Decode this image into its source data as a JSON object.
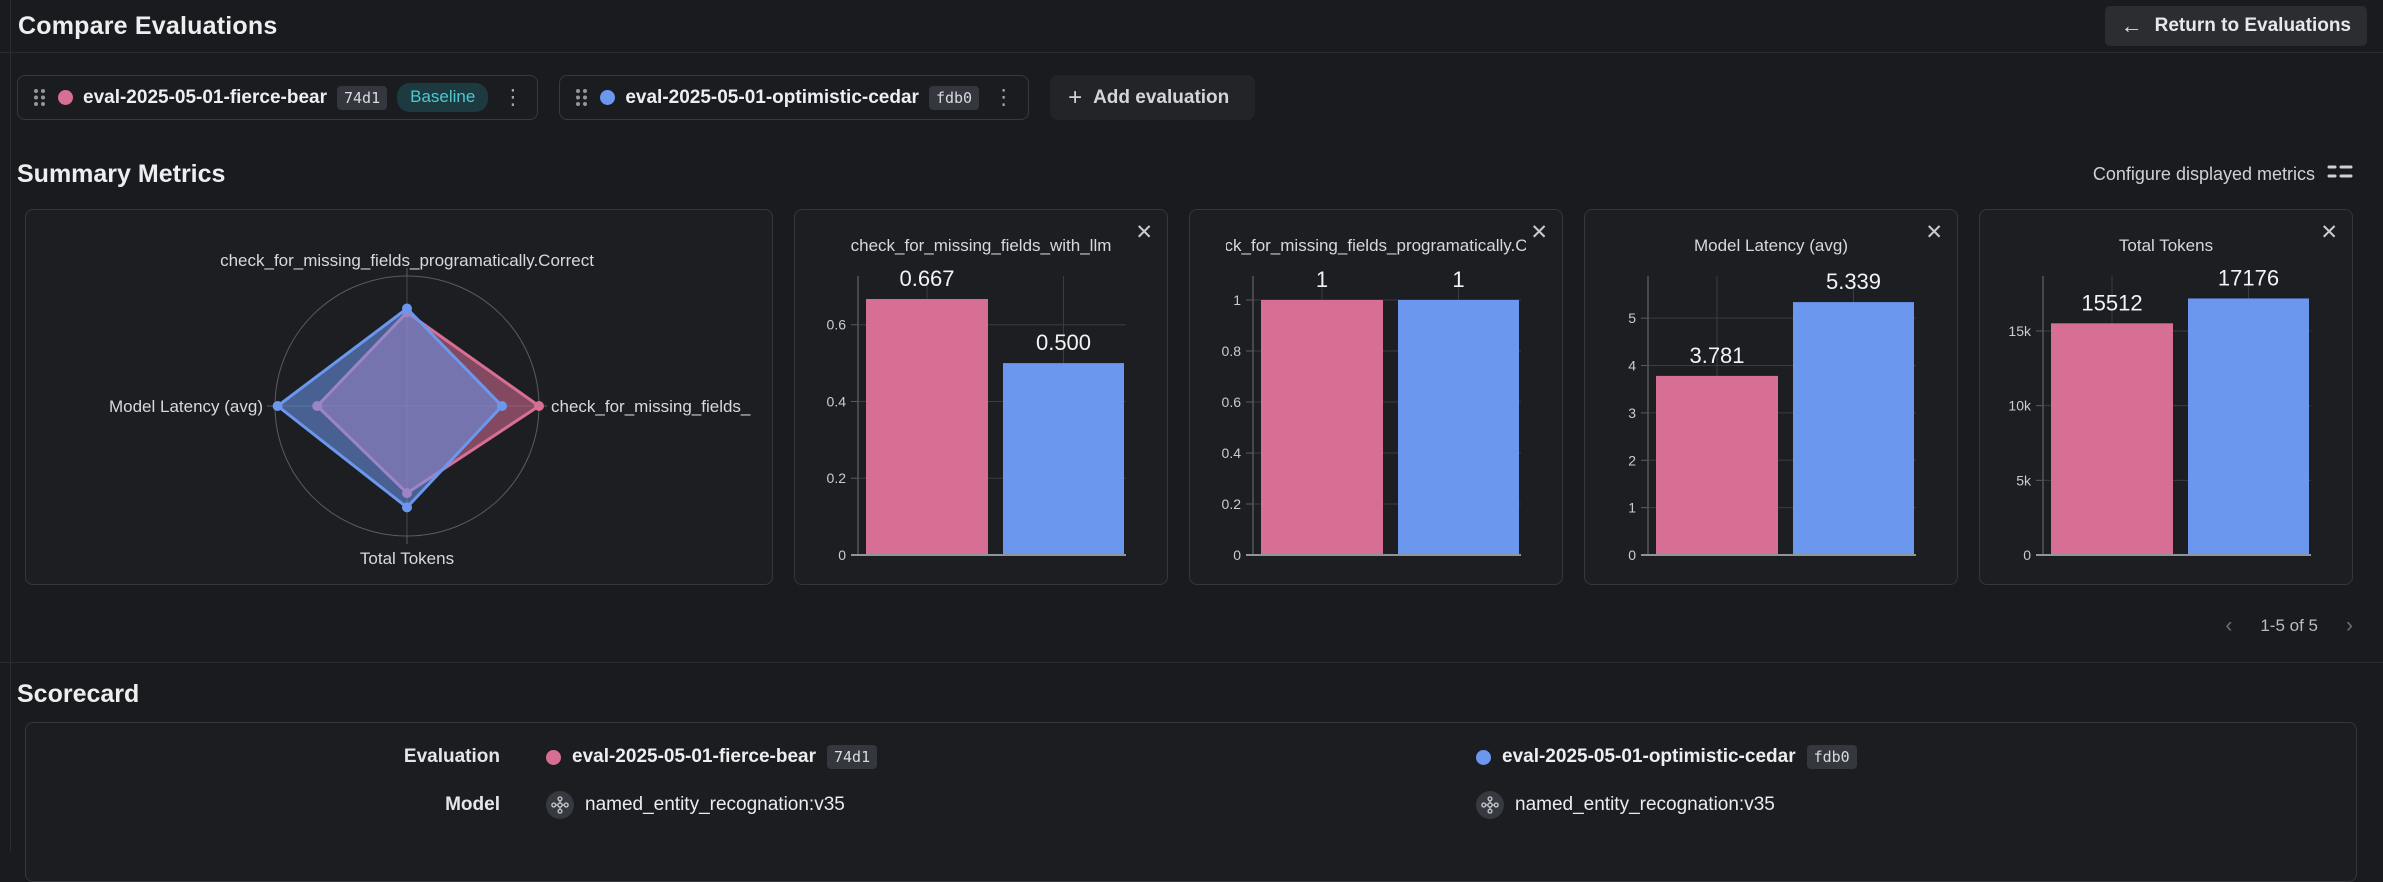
{
  "series_colors": [
    "#d76e94",
    "#6b97ee"
  ],
  "header": {
    "title": "Compare Evaluations",
    "return_button": "Return to Evaluations"
  },
  "evaluations_bar": {
    "chips": [
      {
        "name": "eval-2025-05-01-fierce-bear",
        "hash": "74d1",
        "baseline_label": "Baseline"
      },
      {
        "name": "eval-2025-05-01-optimistic-cedar",
        "hash": "fdb0"
      }
    ],
    "add_button": "Add evaluation"
  },
  "summary": {
    "title": "Summary Metrics",
    "configure_label": "Configure displayed metrics",
    "pagination": "1-5 of 5"
  },
  "scorecard": {
    "title": "Scorecard",
    "row_labels": {
      "evaluation": "Evaluation",
      "model": "Model"
    },
    "columns": [
      {
        "eval_name": "eval-2025-05-01-fierce-bear",
        "eval_hash": "74d1",
        "model": "named_entity_recognation:v35"
      },
      {
        "eval_name": "eval-2025-05-01-optimistic-cedar",
        "eval_hash": "fdb0",
        "model": "named_entity_recognation:v35"
      }
    ]
  },
  "chart_data": [
    {
      "type": "radar",
      "axes": [
        {
          "label": "check_for_missing_fields_programatically.Correct",
          "position": "top"
        },
        {
          "label": "check_for_missing_fields_",
          "position": "right"
        },
        {
          "label": "Total Tokens",
          "position": "bottom"
        },
        {
          "label": "Model Latency (avg)",
          "position": "left"
        }
      ],
      "series": [
        {
          "name": "eval-2025-05-01-fierce-bear",
          "values": [
            1,
            0.667,
            15512,
            3.781
          ],
          "radii": [
            0.72,
            1.0,
            0.67,
            0.68
          ]
        },
        {
          "name": "eval-2025-05-01-optimistic-cedar",
          "values": [
            1,
            0.5,
            17176,
            5.339
          ],
          "radii": [
            0.75,
            0.72,
            0.78,
            0.98
          ]
        }
      ]
    },
    {
      "type": "bar",
      "title": "check_for_missing_fields_with_llm",
      "values": [
        0.667,
        0.5
      ],
      "bar_labels": [
        "0.667",
        "0.500"
      ],
      "ymax": 0.727,
      "yticks": [
        [
          0,
          "0"
        ],
        [
          0.2,
          "0.2"
        ],
        [
          0.4,
          "0.4"
        ],
        [
          0.6,
          "0.6"
        ]
      ]
    },
    {
      "type": "bar",
      "title": "ck_for_missing_fields_programatically.C",
      "values": [
        1,
        1
      ],
      "bar_labels": [
        "1",
        "1"
      ],
      "ymax": 1.094,
      "yticks": [
        [
          0,
          "0"
        ],
        [
          0.2,
          "0.2"
        ],
        [
          0.4,
          "0.4"
        ],
        [
          0.6,
          "0.6"
        ],
        [
          0.8,
          "0.8"
        ],
        [
          1,
          "1"
        ]
      ]
    },
    {
      "type": "bar",
      "title": "Model Latency (avg)",
      "values": [
        3.781,
        5.339
      ],
      "bar_labels": [
        "3.781",
        "5.339"
      ],
      "ymax": 5.89,
      "yticks": [
        [
          0,
          "0"
        ],
        [
          1,
          "1"
        ],
        [
          2,
          "2"
        ],
        [
          3,
          "3"
        ],
        [
          4,
          "4"
        ],
        [
          5,
          "5"
        ]
      ]
    },
    {
      "type": "bar",
      "title": "Total Tokens",
      "values": [
        15512,
        17176
      ],
      "bar_labels": [
        "15512",
        "17176"
      ],
      "ymax": 18680,
      "yticks": [
        [
          0,
          "0"
        ],
        [
          5000,
          "5k"
        ],
        [
          10000,
          "10k"
        ],
        [
          15000,
          "15k"
        ]
      ]
    }
  ]
}
